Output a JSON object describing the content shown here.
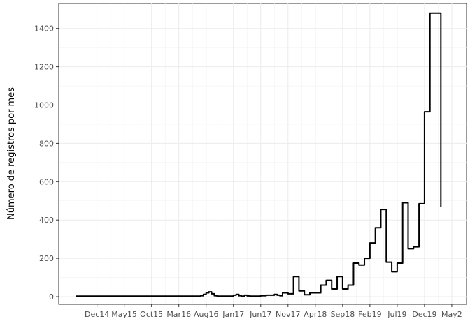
{
  "chart_data": {
    "type": "line",
    "title": "",
    "xlabel": "",
    "ylabel": "Número de registros por mes",
    "ylim": [
      -40,
      1530
    ],
    "yticks": [
      0,
      200,
      400,
      600,
      800,
      1000,
      1200,
      1400
    ],
    "xlim": [
      -7,
      67.7
    ],
    "xticks": [
      {
        "label": "Dec14",
        "month": 0
      },
      {
        "label": "May15",
        "month": 5
      },
      {
        "label": "Oct15",
        "month": 10
      },
      {
        "label": "Mar16",
        "month": 15
      },
      {
        "label": "Aug16",
        "month": 20
      },
      {
        "label": "Jan17",
        "month": 25
      },
      {
        "label": "Jun17",
        "month": 30
      },
      {
        "label": "Nov17",
        "month": 35
      },
      {
        "label": "Apr18",
        "month": 40
      },
      {
        "label": "Sep18",
        "month": 45
      },
      {
        "label": "Feb19",
        "month": 50
      },
      {
        "label": "Jul19",
        "month": 55
      },
      {
        "label": "Dec19",
        "month": 60
      },
      {
        "label": "May2",
        "month": 65
      }
    ],
    "grid": true,
    "legend": "none",
    "line_color": "#000000",
    "series": [
      {
        "month": [
          -3.9,
          -2.0,
          0,
          2,
          4,
          6,
          8,
          10,
          12,
          14,
          16,
          18,
          19,
          19.5,
          20,
          20.5,
          21,
          21.5,
          22,
          24,
          25,
          25.5,
          26,
          26.5,
          27,
          27.5,
          28,
          29,
          30,
          30.5,
          31,
          31.5,
          32,
          32.5,
          33,
          33.5,
          34,
          35,
          36,
          37,
          38,
          39,
          40,
          41,
          42,
          43,
          44,
          45,
          46,
          47,
          48,
          49,
          50,
          51,
          52,
          53,
          54,
          55,
          56,
          57,
          58,
          59,
          60,
          61,
          62,
          63
        ],
        "records": [
          3,
          3,
          3,
          3,
          3,
          3,
          3,
          3,
          3,
          3,
          3,
          3,
          5,
          12,
          20,
          25,
          15,
          5,
          3,
          3,
          8,
          12,
          5,
          2,
          8,
          4,
          3,
          3,
          5,
          5,
          8,
          8,
          8,
          12,
          8,
          5,
          20,
          15,
          105,
          30,
          10,
          20,
          20,
          60,
          85,
          40,
          105,
          40,
          60,
          175,
          165,
          200,
          280,
          360,
          455,
          180,
          130,
          175,
          490,
          250,
          260,
          485,
          965,
          1480,
          1480,
          470
        ]
      }
    ]
  }
}
